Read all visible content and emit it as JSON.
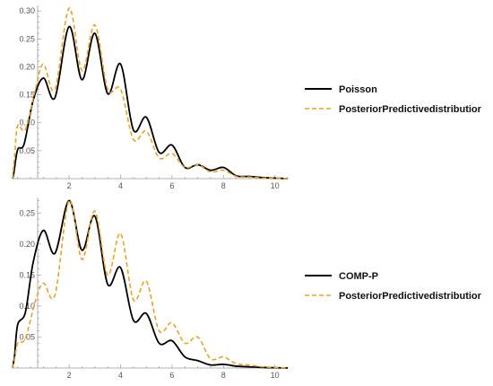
{
  "chart_data": [
    {
      "type": "line",
      "title": "",
      "xlabel": "",
      "ylabel": "",
      "xlim": [
        -0.2,
        10.5
      ],
      "ylim": [
        0,
        0.31
      ],
      "x_ticks": [
        2,
        4,
        6,
        8,
        10
      ],
      "y_ticks": [
        0.05,
        0.1,
        0.15,
        0.2,
        0.25,
        0.3
      ],
      "x_tick_labels": [
        "2",
        "4",
        "6",
        "8",
        "10"
      ],
      "y_tick_labels": [
        "0.05",
        "0.10",
        "0.15",
        "0.20",
        "0.25",
        "0.30"
      ],
      "grid": false,
      "legend_position": "right",
      "series": [
        {
          "name": "Poisson",
          "style": "solid",
          "color": "#000000",
          "points": [
            [
              -0.2,
              0
            ],
            [
              -0.15,
              0.01
            ],
            [
              0,
              0.052
            ],
            [
              0.25,
              0.062
            ],
            [
              0.6,
              0.14
            ],
            [
              1,
              0.18
            ],
            [
              1.45,
              0.145
            ],
            [
              2,
              0.272
            ],
            [
              2.5,
              0.177
            ],
            [
              3,
              0.26
            ],
            [
              3.5,
              0.152
            ],
            [
              4,
              0.205
            ],
            [
              4.5,
              0.087
            ],
            [
              5,
              0.11
            ],
            [
              5.5,
              0.047
            ],
            [
              6,
              0.06
            ],
            [
              6.5,
              0.02
            ],
            [
              7,
              0.025
            ],
            [
              7.5,
              0.015
            ],
            [
              8,
              0.02
            ],
            [
              8.5,
              0.005
            ],
            [
              9,
              0.004
            ],
            [
              9.5,
              0.002
            ],
            [
              10,
              0.001
            ],
            [
              10.5,
              0
            ]
          ]
        },
        {
          "name": "PosteriorPredictivedistributior",
          "style": "dashed",
          "color": "#E8A321",
          "points": [
            [
              -0.2,
              0
            ],
            [
              -0.12,
              0.04
            ],
            [
              0,
              0.095
            ],
            [
              0.3,
              0.088
            ],
            [
              0.7,
              0.162
            ],
            [
              1,
              0.205
            ],
            [
              1.45,
              0.16
            ],
            [
              2,
              0.305
            ],
            [
              2.5,
              0.193
            ],
            [
              3,
              0.275
            ],
            [
              3.5,
              0.16
            ],
            [
              4,
              0.16
            ],
            [
              4.5,
              0.07
            ],
            [
              5,
              0.085
            ],
            [
              5.5,
              0.037
            ],
            [
              6,
              0.045
            ],
            [
              6.5,
              0.02
            ],
            [
              7,
              0.025
            ],
            [
              7.5,
              0.012
            ],
            [
              8,
              0.015
            ],
            [
              8.5,
              0.004
            ],
            [
              9,
              0.003
            ],
            [
              9.5,
              0.001
            ],
            [
              10,
              0.001
            ],
            [
              10.5,
              0
            ]
          ]
        }
      ]
    },
    {
      "type": "line",
      "title": "",
      "xlabel": "",
      "ylabel": "",
      "xlim": [
        -0.2,
        10.5
      ],
      "ylim": [
        0,
        0.275
      ],
      "x_ticks": [
        2,
        4,
        6,
        8,
        10
      ],
      "y_ticks": [
        0.05,
        0.1,
        0.15,
        0.2,
        0.25
      ],
      "x_tick_labels": [
        "2",
        "4",
        "6",
        "8",
        "10"
      ],
      "y_tick_labels": [
        "0.05",
        "0.10",
        "0.15",
        "0.20",
        "0.25"
      ],
      "grid": false,
      "legend_position": "right",
      "series": [
        {
          "name": "COMP-P",
          "style": "solid",
          "color": "#000000",
          "points": [
            [
              -0.2,
              0
            ],
            [
              -0.12,
              0.02
            ],
            [
              0,
              0.07
            ],
            [
              0.3,
              0.09
            ],
            [
              0.6,
              0.17
            ],
            [
              1,
              0.222
            ],
            [
              1.45,
              0.185
            ],
            [
              2,
              0.27
            ],
            [
              2.5,
              0.19
            ],
            [
              3,
              0.245
            ],
            [
              3.5,
              0.135
            ],
            [
              4,
              0.162
            ],
            [
              4.5,
              0.077
            ],
            [
              5,
              0.088
            ],
            [
              5.5,
              0.04
            ],
            [
              6,
              0.044
            ],
            [
              6.5,
              0.018
            ],
            [
              7,
              0.012
            ],
            [
              7.5,
              0.005
            ],
            [
              8,
              0.006
            ],
            [
              8.5,
              0.003
            ],
            [
              9,
              0.002
            ],
            [
              9.5,
              0.001
            ],
            [
              10,
              0.0005
            ],
            [
              10.5,
              0
            ]
          ]
        },
        {
          "name": "PosteriorPredictivedistributior",
          "style": "dashed",
          "color": "#E8A321",
          "points": [
            [
              -0.2,
              0
            ],
            [
              -0.12,
              0.015
            ],
            [
              0,
              0.04
            ],
            [
              0.3,
              0.048
            ],
            [
              0.7,
              0.11
            ],
            [
              1,
              0.137
            ],
            [
              1.45,
              0.118
            ],
            [
              2,
              0.27
            ],
            [
              2.5,
              0.175
            ],
            [
              3,
              0.253
            ],
            [
              3.5,
              0.15
            ],
            [
              4,
              0.217
            ],
            [
              4.5,
              0.11
            ],
            [
              5,
              0.14
            ],
            [
              5.5,
              0.06
            ],
            [
              6,
              0.073
            ],
            [
              6.5,
              0.04
            ],
            [
              7,
              0.05
            ],
            [
              7.5,
              0.015
            ],
            [
              8,
              0.018
            ],
            [
              8.5,
              0.007
            ],
            [
              9,
              0.005
            ],
            [
              9.5,
              0.002
            ],
            [
              10,
              0.001
            ],
            [
              10.5,
              0
            ]
          ]
        }
      ]
    }
  ]
}
